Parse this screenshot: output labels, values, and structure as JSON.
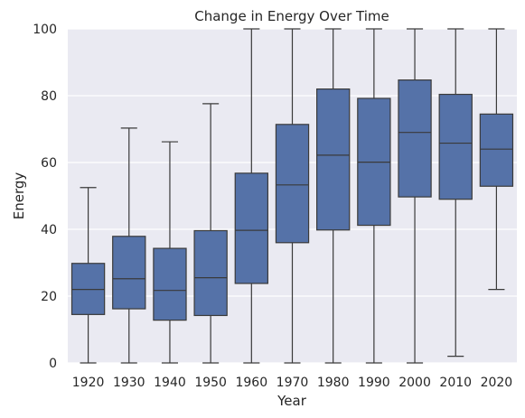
{
  "chart_data": {
    "type": "box",
    "title": "Change in Energy Over Time",
    "xlabel": "Year",
    "ylabel": "Energy",
    "ylim": [
      0,
      100
    ],
    "yticks": [
      0,
      20,
      40,
      60,
      80,
      100
    ],
    "grid": true,
    "categories": [
      "1920",
      "1930",
      "1940",
      "1950",
      "1960",
      "1970",
      "1980",
      "1990",
      "2000",
      "2010",
      "2020"
    ],
    "boxes": [
      {
        "min": 0,
        "q1": 14.5,
        "median": 22.0,
        "q3": 29.8,
        "max": 52.5
      },
      {
        "min": 0,
        "q1": 16.2,
        "median": 25.2,
        "q3": 37.9,
        "max": 70.3
      },
      {
        "min": 0,
        "q1": 12.8,
        "median": 21.7,
        "q3": 34.3,
        "max": 66.2
      },
      {
        "min": 0,
        "q1": 14.2,
        "median": 25.5,
        "q3": 39.6,
        "max": 77.6
      },
      {
        "min": 0,
        "q1": 23.8,
        "median": 39.7,
        "q3": 56.8,
        "max": 100
      },
      {
        "min": 0,
        "q1": 36.0,
        "median": 53.3,
        "q3": 71.4,
        "max": 100
      },
      {
        "min": 0,
        "q1": 39.8,
        "median": 62.2,
        "q3": 82.0,
        "max": 100
      },
      {
        "min": 0,
        "q1": 41.2,
        "median": 60.1,
        "q3": 79.2,
        "max": 100
      },
      {
        "min": 0,
        "q1": 49.7,
        "median": 69.0,
        "q3": 84.7,
        "max": 100
      },
      {
        "min": 2.0,
        "q1": 49.0,
        "median": 65.8,
        "q3": 80.4,
        "max": 100
      },
      {
        "min": 22.0,
        "q1": 52.9,
        "median": 64.0,
        "q3": 74.5,
        "max": 100
      }
    ],
    "colors": {
      "box_fill": "#5572a8",
      "line": "#3a3a3a",
      "background": "#eaeaf2",
      "grid": "#ffffff",
      "text": "#262626"
    }
  }
}
